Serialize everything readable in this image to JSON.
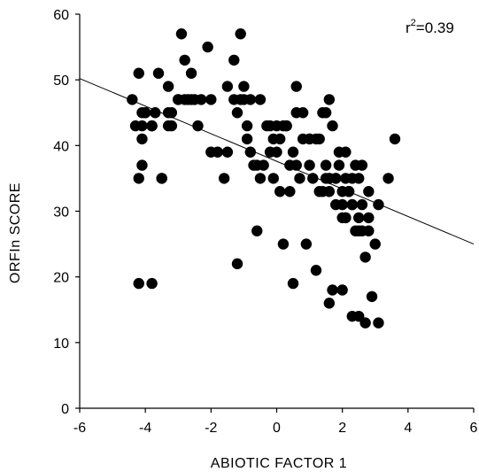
{
  "chart_data": {
    "type": "scatter",
    "xlabel": "ABIOTIC FACTOR 1",
    "ylabel": "ORFIn SCORE",
    "xlim": [
      -6,
      6
    ],
    "ylim": [
      0,
      60
    ],
    "xticks": [
      -6,
      -4,
      -2,
      0,
      2,
      4,
      6
    ],
    "yticks": [
      0,
      10,
      20,
      30,
      40,
      50,
      60
    ],
    "x_tick_labels": [
      "-6",
      "-4",
      "-2",
      "0",
      "2",
      "4",
      "6"
    ],
    "y_tick_labels": [
      "0",
      "10",
      "20",
      "30",
      "40",
      "50",
      "60"
    ],
    "annotation": {
      "r2_prefix": "r",
      "r2_exp": "2",
      "r2_value": "=0.39"
    },
    "regression_line": {
      "x": [
        -6,
        6
      ],
      "y": [
        50.2,
        25.0
      ]
    },
    "grid": false,
    "legend": "none",
    "points": {
      "x": [
        -4.4,
        -4.2,
        -4.1,
        -4.1,
        -4.0,
        -3.8,
        -3.8,
        -3.6,
        -3.3,
        -3.3,
        -3.7,
        -3.5,
        -3.2,
        -3.0,
        -2.9,
        -2.8,
        -2.6,
        -2.6,
        -2.4,
        -2.1,
        -2.0,
        -1.8,
        -1.5,
        -1.3,
        -1.2,
        -1.1,
        -0.9,
        -0.8,
        -0.7,
        -0.5,
        -0.2,
        0.1,
        0.3,
        0.6,
        0.8,
        1.0,
        1.2,
        1.5,
        1.6,
        1.8,
        1.9,
        2.0,
        2.2,
        2.4,
        2.6,
        2.8,
        3.1,
        3.4,
        3.6,
        -4.3,
        -4.2,
        -4.1,
        -4.0,
        -3.5,
        -3.3,
        -3.2,
        -2.8,
        -2.7,
        -2.5,
        -2.3,
        -1.6,
        -1.5,
        -1.3,
        -1.1,
        -1.0,
        -0.9,
        -0.8,
        -0.6,
        -0.3,
        -0.1,
        0.0,
        0.2,
        0.4,
        0.6,
        0.8,
        1.1,
        1.3,
        1.4,
        1.6,
        1.7,
        1.9,
        2.1,
        2.2,
        2.3,
        2.5,
        2.6,
        2.8,
        -4.2,
        -4.1,
        -3.8,
        -1.2,
        -0.6,
        0.2,
        0.5,
        0.9,
        1.2,
        1.6,
        1.7,
        2.0,
        2.3,
        2.5,
        2.7,
        2.9,
        3.1,
        1.4,
        1.6,
        1.8,
        2.0,
        2.1,
        2.4,
        2.8,
        3.0,
        -0.1,
        0.1,
        0.4,
        0.7,
        1.0,
        1.5,
        1.8,
        2.1,
        2.3,
        2.5,
        2.7,
        -0.4,
        -0.2,
        0.3,
        0.6,
        1.3,
        1.6,
        2.0,
        2.3,
        2.6,
        -3.0,
        -2.0,
        -1.0,
        -0.5,
        0.0,
        0.5,
        1.0,
        1.5,
        2.1,
        2.5
      ],
      "y": [
        47,
        51,
        45,
        43,
        45,
        43,
        43,
        51,
        49,
        43,
        45,
        35,
        45,
        47,
        57,
        47,
        51,
        47,
        43,
        55,
        47,
        39,
        49,
        53,
        45,
        57,
        43,
        39,
        37,
        47,
        43,
        41,
        43,
        49,
        45,
        41,
        41,
        37,
        33,
        35,
        37,
        31,
        33,
        37,
        37,
        33,
        31,
        35,
        41,
        43,
        35,
        37,
        45,
        35,
        45,
        43,
        53,
        47,
        47,
        47,
        35,
        39,
        47,
        47,
        47,
        41,
        47,
        37,
        43,
        41,
        43,
        43,
        33,
        45,
        41,
        35,
        41,
        45,
        47,
        43,
        39,
        35,
        33,
        35,
        29,
        31,
        29,
        19,
        41,
        19,
        22,
        27,
        25,
        19,
        25,
        21,
        16,
        18,
        18,
        14,
        14,
        13,
        17,
        13,
        33,
        35,
        35,
        33,
        29,
        27,
        27,
        25,
        35,
        33,
        37,
        35,
        37,
        35,
        31,
        29,
        31,
        27,
        23,
        37,
        39,
        43,
        37,
        33,
        35,
        29,
        31,
        27,
        47,
        39,
        49,
        35,
        39,
        39,
        41,
        45,
        39,
        35
      ]
    }
  }
}
